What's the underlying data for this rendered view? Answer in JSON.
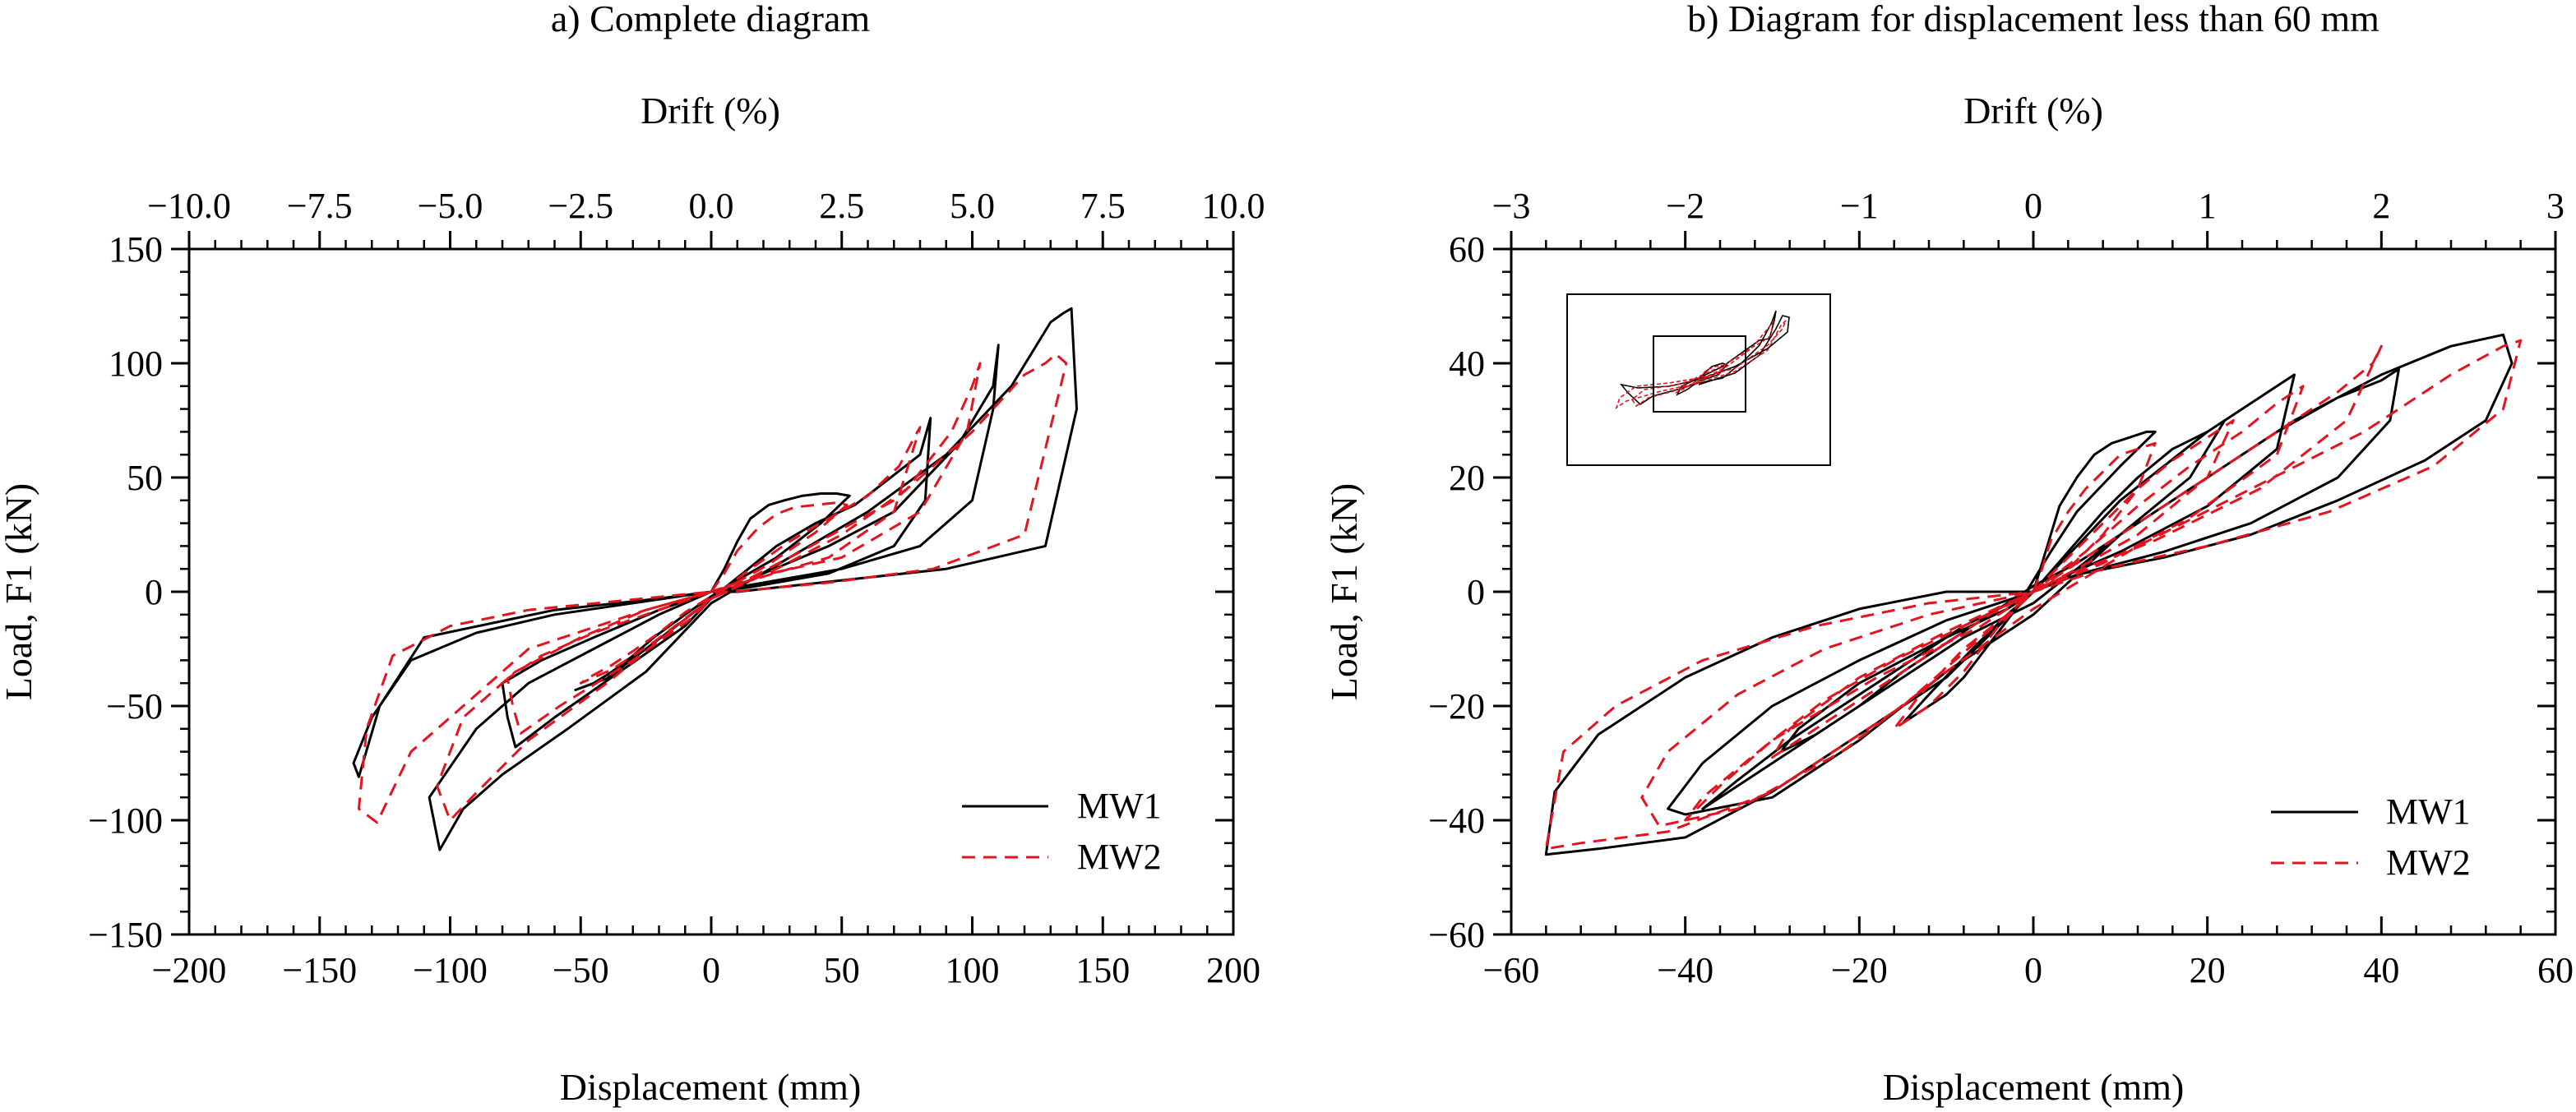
{
  "colors": {
    "mw1": "#000000",
    "mw2": "#e3141f",
    "axis": "#000000",
    "background": "#ffffff"
  },
  "chart_data": [
    {
      "type": "line",
      "title": "a) Complete diagram",
      "xlabel": "Displacement (mm)",
      "ylabel": "Load, F1 (kN)",
      "x2label": "Drift (%)",
      "xlim": [
        -200,
        200
      ],
      "ylim": [
        -150,
        150
      ],
      "x2lim": [
        -10,
        10
      ],
      "xticks": [
        "−200",
        "−150",
        "−100",
        "−50",
        "0",
        "50",
        "100",
        "150",
        "200"
      ],
      "yticks": [
        "−150",
        "−100",
        "−50",
        "0",
        "50",
        "100",
        "150"
      ],
      "x2ticks": [
        "−10.0",
        "−7.5",
        "−5.0",
        "−2.5",
        "0.0",
        "2.5",
        "5.0",
        "7.5",
        "10.0"
      ],
      "grid": false,
      "legend_position": "bottom-right",
      "series": [
        {
          "name": "MW1",
          "style": "solid",
          "x": [
            0,
            5,
            10,
            15,
            22,
            28,
            35,
            42,
            48,
            53,
            42,
            25,
            10,
            0,
            -10,
            -22,
            -30,
            -38,
            -45,
            -52,
            -40,
            -25,
            -10,
            0,
            12,
            25,
            40,
            55,
            62,
            80,
            84,
            82,
            70,
            45,
            15,
            0,
            -20,
            -45,
            -65,
            -80,
            -78,
            -75,
            -60,
            -35,
            -10,
            0,
            20,
            45,
            70,
            95,
            108,
            110,
            108,
            100,
            80,
            50,
            15,
            0,
            -20,
            -45,
            -70,
            -90,
            -108,
            -104,
            -95,
            -80,
            -55,
            -25,
            0,
            30,
            60,
            90,
            115,
            130,
            135,
            138,
            140,
            128,
            90,
            50,
            10,
            0,
            -30,
            -60,
            -90,
            -115,
            -130,
            -137,
            -135,
            -127,
            -110,
            -60,
            -20,
            0
          ],
          "y": [
            0,
            10,
            22,
            32,
            38,
            40,
            42,
            43,
            43,
            42,
            30,
            15,
            5,
            -2,
            -10,
            -20,
            -28,
            -35,
            -40,
            -43,
            -38,
            -25,
            -12,
            -3,
            8,
            20,
            30,
            38,
            44,
            60,
            76,
            40,
            20,
            8,
            2,
            0,
            -8,
            -20,
            -30,
            -40,
            -55,
            -68,
            -55,
            -35,
            -15,
            -3,
            8,
            20,
            35,
            65,
            90,
            108,
            80,
            40,
            20,
            10,
            3,
            0,
            -10,
            -25,
            -40,
            -60,
            -90,
            -113,
            -95,
            -80,
            -60,
            -35,
            -5,
            15,
            35,
            60,
            90,
            118,
            122,
            124,
            80,
            20,
            10,
            5,
            0,
            0,
            -5,
            -10,
            -18,
            -30,
            -55,
            -75,
            -81,
            -50,
            -20,
            -8,
            -3,
            0
          ]
        },
        {
          "name": "MW2",
          "style": "dashed",
          "x": [
            0,
            5,
            10,
            18,
            25,
            32,
            40,
            48,
            52,
            40,
            22,
            8,
            0,
            -10,
            -20,
            -30,
            -38,
            -46,
            -50,
            -38,
            -22,
            -8,
            0,
            15,
            30,
            45,
            60,
            72,
            78,
            80,
            70,
            45,
            15,
            0,
            -20,
            -45,
            -65,
            -78,
            -76,
            -73,
            -58,
            -30,
            -8,
            0,
            25,
            50,
            75,
            92,
            100,
            103,
            98,
            80,
            50,
            15,
            0,
            -25,
            -50,
            -75,
            -95,
            -105,
            -100,
            -90,
            -70,
            -40,
            -10,
            0,
            35,
            70,
            100,
            120,
            128,
            132,
            136,
            120,
            85,
            45,
            8,
            0,
            -35,
            -70,
            -100,
            -122,
            -132,
            -135,
            -128,
            -115,
            -70,
            -25,
            0
          ],
          "y": [
            0,
            8,
            18,
            28,
            34,
            37,
            38,
            39,
            38,
            26,
            12,
            3,
            -2,
            -9,
            -18,
            -26,
            -32,
            -37,
            -40,
            -34,
            -22,
            -10,
            -3,
            10,
            22,
            32,
            42,
            55,
            68,
            72,
            35,
            15,
            5,
            0,
            -8,
            -18,
            -28,
            -38,
            -50,
            -62,
            -50,
            -30,
            -12,
            -3,
            10,
            25,
            45,
            70,
            90,
            100,
            70,
            35,
            15,
            6,
            0,
            -8,
            -20,
            -35,
            -55,
            -85,
            -100,
            -88,
            -65,
            -40,
            -12,
            -3,
            18,
            40,
            70,
            95,
            100,
            104,
            100,
            25,
            10,
            4,
            0,
            0,
            -4,
            -8,
            -15,
            -28,
            -60,
            -95,
            -101,
            -70,
            -25,
            -8,
            0
          ]
        }
      ]
    },
    {
      "type": "line",
      "title": "b) Diagram for displacement less than 60 mm",
      "xlabel": "Displacement (mm)",
      "ylabel": "Load, F1 (kN)",
      "x2label": "Drift (%)",
      "xlim": [
        -60,
        60
      ],
      "ylim": [
        -60,
        60
      ],
      "x2lim": [
        -3,
        3
      ],
      "xticks": [
        "−60",
        "−40",
        "−20",
        "0",
        "20",
        "40",
        "60"
      ],
      "yticks": [
        "−60",
        "−40",
        "−20",
        "0",
        "20",
        "40",
        "60"
      ],
      "x2ticks": [
        "−3",
        "−2",
        "−1",
        "0",
        "1",
        "2",
        "3"
      ],
      "grid": false,
      "legend_position": "bottom-right",
      "inset": "thumbnail of the complete diagram with a rectangle marking the zoomed region",
      "series": [
        {
          "name": "MW1",
          "style": "solid",
          "x": [
            0,
            1,
            2,
            3,
            5,
            7,
            9,
            11,
            13,
            14,
            10,
            5,
            2,
            0,
            -2,
            -4,
            -6,
            -8,
            -10,
            -12,
            -14,
            -15,
            -12,
            -7,
            -3,
            0,
            4,
            8,
            12,
            16,
            20,
            22,
            18,
            10,
            5,
            0,
            -5,
            -10,
            -15,
            -20,
            -25,
            -29,
            -27,
            -20,
            -10,
            -3,
            0,
            5,
            10,
            15,
            20,
            25,
            28,
            30,
            28,
            20,
            10,
            4,
            0,
            -8,
            -15,
            -22,
            -28,
            -34,
            -38,
            -36,
            -28,
            -18,
            -8,
            0,
            10,
            20,
            28,
            35,
            40,
            42,
            41,
            35,
            25,
            15,
            5,
            0,
            -10,
            -20,
            -30,
            -38,
            -42,
            -40,
            -30,
            -20,
            -10,
            0,
            10,
            20,
            30,
            40,
            48,
            54,
            55,
            52,
            45,
            35,
            25,
            15,
            5,
            0,
            -10,
            -20,
            -30,
            -40,
            -50,
            -55,
            -56,
            -50,
            -40,
            -30,
            -20,
            -10,
            0
          ],
          "y": [
            0,
            5,
            10,
            15,
            20,
            24,
            26,
            27,
            28,
            28,
            22,
            14,
            7,
            2,
            -3,
            -7,
            -11,
            -15,
            -18,
            -20,
            -22,
            -23,
            -18,
            -10,
            -4,
            0,
            7,
            14,
            20,
            25,
            28,
            30,
            20,
            10,
            5,
            1,
            -4,
            -9,
            -14,
            -20,
            -25,
            -28,
            -24,
            -16,
            -8,
            -3,
            0,
            8,
            16,
            22,
            28,
            33,
            36,
            38,
            25,
            15,
            7,
            3,
            0,
            -6,
            -13,
            -20,
            -26,
            -33,
            -38,
            -36,
            -28,
            -18,
            -8,
            -2,
            10,
            20,
            28,
            34,
            37,
            39,
            30,
            20,
            12,
            7,
            3,
            0,
            -5,
            -12,
            -20,
            -30,
            -38,
            -39,
            -36,
            -26,
            -14,
            -4,
            10,
            20,
            30,
            38,
            43,
            45,
            40,
            30,
            23,
            16,
            10,
            6,
            3,
            0,
            0,
            -3,
            -8,
            -15,
            -25,
            -35,
            -46,
            -45,
            -43,
            -35,
            -25,
            -15,
            0
          ]
        },
        {
          "name": "MW2",
          "style": "dashed",
          "x": [
            0,
            1,
            2,
            4,
            6,
            8,
            10,
            12,
            14,
            12,
            8,
            4,
            0,
            -2,
            -4,
            -6,
            -8,
            -10,
            -12,
            -14,
            -16,
            -13,
            -8,
            -3,
            0,
            4,
            8,
            12,
            16,
            20,
            23,
            20,
            12,
            5,
            0,
            -5,
            -10,
            -15,
            -20,
            -25,
            -30,
            -28,
            -20,
            -10,
            -3,
            0,
            6,
            12,
            18,
            24,
            28,
            31,
            28,
            18,
            8,
            0,
            -8,
            -16,
            -24,
            -30,
            -36,
            -40,
            -38,
            -30,
            -18,
            -6,
            0,
            10,
            20,
            28,
            35,
            39,
            40,
            36,
            26,
            14,
            4,
            0,
            -12,
            -24,
            -34,
            -42,
            -45,
            -43,
            -34,
            -22,
            -10,
            0,
            12,
            25,
            38,
            48,
            54,
            56,
            54,
            46,
            34,
            20,
            8,
            0,
            -12,
            -25,
            -38,
            -48,
            -54,
            -56,
            -52,
            -42,
            -30,
            -15,
            0
          ],
          "y": [
            0,
            4,
            9,
            14,
            18,
            21,
            24,
            25,
            26,
            18,
            10,
            4,
            0,
            -3,
            -6,
            -10,
            -14,
            -17,
            -20,
            -22,
            -24,
            -18,
            -10,
            -4,
            0,
            6,
            12,
            18,
            23,
            27,
            30,
            20,
            10,
            4,
            0,
            -4,
            -9,
            -14,
            -19,
            -24,
            -29,
            -24,
            -15,
            -7,
            -2,
            0,
            7,
            15,
            22,
            28,
            33,
            36,
            24,
            13,
            5,
            0,
            -6,
            -12,
            -19,
            -26,
            -34,
            -40,
            -36,
            -26,
            -15,
            -6,
            0,
            10,
            20,
            28,
            35,
            40,
            43,
            30,
            18,
            9,
            3,
            0,
            -4,
            -10,
            -18,
            -28,
            -36,
            -41,
            -38,
            -28,
            -14,
            -3,
            8,
            18,
            28,
            38,
            43,
            44,
            32,
            22,
            14,
            8,
            4,
            0,
            -2,
            -6,
            -12,
            -20,
            -28,
            -45,
            -44,
            -42,
            -35,
            -20,
            0
          ]
        }
      ]
    }
  ]
}
